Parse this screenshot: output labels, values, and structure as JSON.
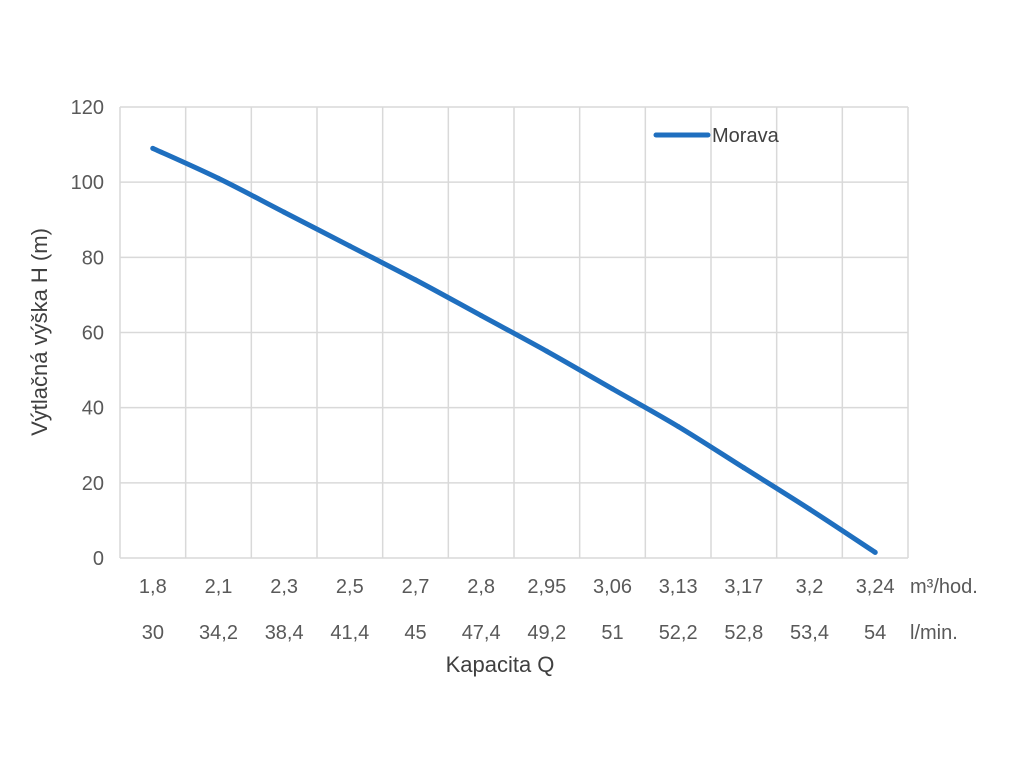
{
  "chart_data": {
    "type": "line",
    "ylabel": "Výtlačná výška H (m)",
    "xlabel": "Kapacita Q",
    "ylim": [
      0,
      120
    ],
    "yticks": [
      0,
      20,
      40,
      60,
      80,
      100,
      120
    ],
    "grid": true,
    "legend_position": "top-right",
    "x_row1_unit": "m³/hod.",
    "x_row2_unit": "l/min.",
    "categories_m3h": [
      "1,8",
      "2,1",
      "2,3",
      "2,5",
      "2,7",
      "2,8",
      "2,95",
      "3,06",
      "3,13",
      "3,17",
      "3,2",
      "3,24"
    ],
    "categories_lmin": [
      "30",
      "34,2",
      "38,4",
      "41,4",
      "45",
      "47,4",
      "49,2",
      "51",
      "52,2",
      "52,8",
      "53,4",
      "54"
    ],
    "series": [
      {
        "name": "Morava",
        "color": "#1f6fbf",
        "values": [
          109,
          101,
          92,
          83,
          74,
          64.5,
          55,
          45,
          35,
          24,
          13,
          1.5
        ]
      }
    ]
  }
}
